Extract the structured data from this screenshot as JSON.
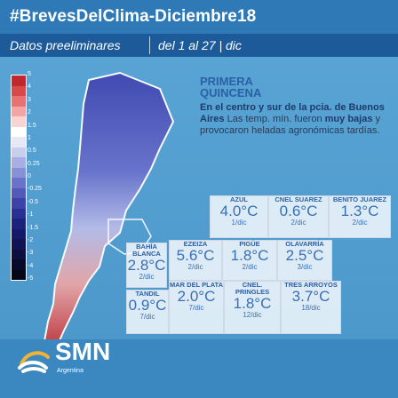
{
  "header": {
    "title": "#BrevesDelClima-Diciembre18",
    "subtitle_left": "Datos preeliminares",
    "subtitle_right": "del 1 al 27 | dic"
  },
  "legend": {
    "colors": [
      "#c1272d",
      "#d84a4a",
      "#e57373",
      "#f3a5a5",
      "#fad3d3",
      "#ffffff",
      "#e7e8f6",
      "#c9cdee",
      "#a9afe3",
      "#8890d6",
      "#6b73c8",
      "#5259b9",
      "#3c42a8",
      "#2a2f94",
      "#1c217c",
      "#15196a",
      "#101452",
      "#0d0f3f",
      "#090a2a",
      "#060619"
    ],
    "labels": [
      "5",
      "4",
      "3",
      "2",
      "1.5",
      "1",
      "0.5",
      "0.25",
      "0",
      "-0.25",
      "-0.5",
      "-1",
      "-1.5",
      "-2",
      "-3",
      "-4",
      "-5"
    ]
  },
  "panel": {
    "title_line1": "PRIMERA",
    "title_line2": "QUINCENA",
    "text_bold1": "En el centro y sur de la pcia. de Buenos Aires",
    "text_normal1": " Las temp. mín. fueron ",
    "text_bold2": "muy bajas",
    "text_normal2": " y provocaron heladas agronómicas tardías."
  },
  "stations": [
    {
      "name": "AZUL",
      "temp": "4.0°C",
      "date": "1/dic"
    },
    {
      "name": "CNEL SUAREZ",
      "temp": "0.6°C",
      "date": "2/dic"
    },
    {
      "name": "BENITO JUAREZ",
      "temp": "1.3°C",
      "date": "2/dic"
    },
    {
      "name": "EZEIZA",
      "temp": "5.6°C",
      "date": "2/dic"
    },
    {
      "name": "BAHÍA BLANCA",
      "temp": "2.8°C",
      "date": "2/dic"
    },
    {
      "name": "PIGÜE",
      "temp": "1.8°C",
      "date": "2/dic"
    },
    {
      "name": "OLAVARRÍA",
      "temp": "2.5°C",
      "date": "3/dic"
    },
    {
      "name": "MAR DEL PLATA",
      "temp": "2.0°C",
      "date": "7/dic"
    },
    {
      "name": "TANDIL",
      "temp": "0.9°C",
      "date": "7/dic"
    },
    {
      "name": "CNEL. PRINGLES",
      "temp": "1.8°C",
      "date": "12/dic"
    },
    {
      "name": "TRES ARROYOS",
      "temp": "3.7°C",
      "date": "18/dic"
    }
  ],
  "footer": {
    "brand": "SMN",
    "brand_sub": "Argentina"
  }
}
